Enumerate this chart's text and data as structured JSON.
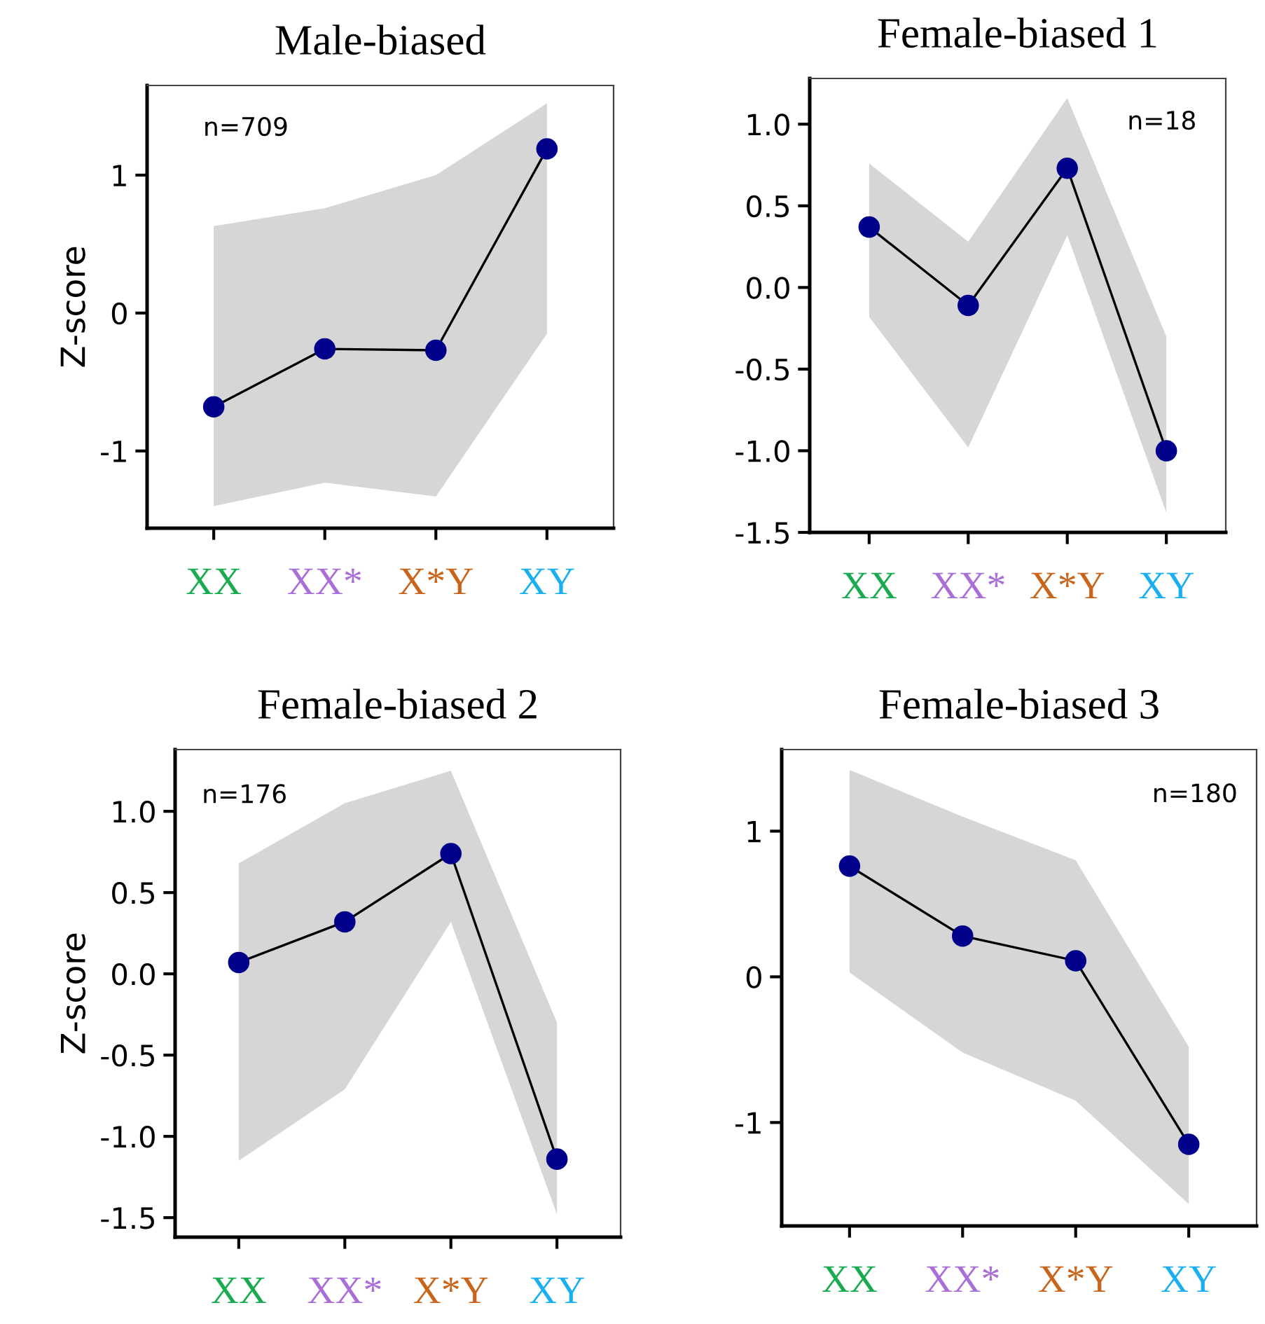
{
  "chart_data": [
    {
      "type": "line",
      "title": "Male-biased",
      "ylabel": "Z-score",
      "categories": [
        "XX",
        "XX*",
        "X*Y",
        "XY"
      ],
      "annotations": [
        "n=709"
      ],
      "ylim": [
        -1.56,
        1.65
      ],
      "yticks": [
        -1,
        0,
        1
      ],
      "marker": "circle",
      "grid": false,
      "legend": false,
      "series": [
        {
          "color": "#00008b",
          "values": [
            -0.68,
            -0.26,
            -0.27,
            1.19
          ],
          "lower": [
            -1.4,
            -1.23,
            -1.33,
            -0.15
          ],
          "upper": [
            0.63,
            0.76,
            1.0,
            1.52
          ]
        }
      ]
    },
    {
      "type": "line",
      "title": "Female-biased 1",
      "categories": [
        "XX",
        "XX*",
        "X*Y",
        "XY"
      ],
      "annotations": [
        "n=18"
      ],
      "ylim": [
        -1.5,
        1.28
      ],
      "yticks": [
        {
          "value": -1.5,
          "label": "-1.5"
        },
        {
          "value": -1.0,
          "label": "-1.0"
        },
        {
          "value": -0.5,
          "label": "-0.5"
        },
        {
          "value": 0.0,
          "label": "0.0"
        },
        {
          "value": 0.5,
          "label": "0.5"
        },
        {
          "value": 1.0,
          "label": "1.0"
        }
      ],
      "marker": "circle",
      "grid": false,
      "legend": false,
      "series": [
        {
          "color": "#00008b",
          "values": [
            0.37,
            -0.11,
            0.73,
            -1.0
          ],
          "lower": [
            -0.18,
            -0.98,
            0.32,
            -1.38
          ],
          "upper": [
            0.76,
            0.28,
            1.16,
            -0.3
          ]
        }
      ]
    },
    {
      "type": "line",
      "title": "Female-biased 2",
      "ylabel": "Z-score",
      "categories": [
        "XX",
        "XX*",
        "X*Y",
        "XY"
      ],
      "annotations": [
        "n=176"
      ],
      "ylim": [
        -1.62,
        1.38
      ],
      "yticks": [
        {
          "value": -1.5,
          "label": "-1.5"
        },
        {
          "value": -1.0,
          "label": "-1.0"
        },
        {
          "value": -0.5,
          "label": "-0.5"
        },
        {
          "value": 0.0,
          "label": "0.0"
        },
        {
          "value": 0.5,
          "label": "0.5"
        },
        {
          "value": 1.0,
          "label": "1.0"
        }
      ],
      "marker": "circle",
      "grid": false,
      "legend": false,
      "series": [
        {
          "color": "#00008b",
          "values": [
            0.07,
            0.32,
            0.74,
            -1.14
          ],
          "lower": [
            -1.15,
            -0.71,
            0.32,
            -1.48
          ],
          "upper": [
            0.68,
            1.05,
            1.25,
            -0.3
          ]
        }
      ]
    },
    {
      "type": "line",
      "title": "Female-biased 3",
      "categories": [
        "XX",
        "XX*",
        "X*Y",
        "XY"
      ],
      "annotations": [
        "n=180"
      ],
      "ylim": [
        -1.71,
        1.56
      ],
      "yticks": [
        -1,
        0,
        1
      ],
      "marker": "circle",
      "grid": false,
      "legend": false,
      "series": [
        {
          "color": "#00008b",
          "values": [
            0.76,
            0.28,
            0.11,
            -1.15
          ],
          "lower": [
            0.03,
            -0.52,
            -0.85,
            -1.56
          ],
          "upper": [
            1.42,
            1.1,
            0.8,
            -0.48
          ]
        }
      ]
    }
  ]
}
